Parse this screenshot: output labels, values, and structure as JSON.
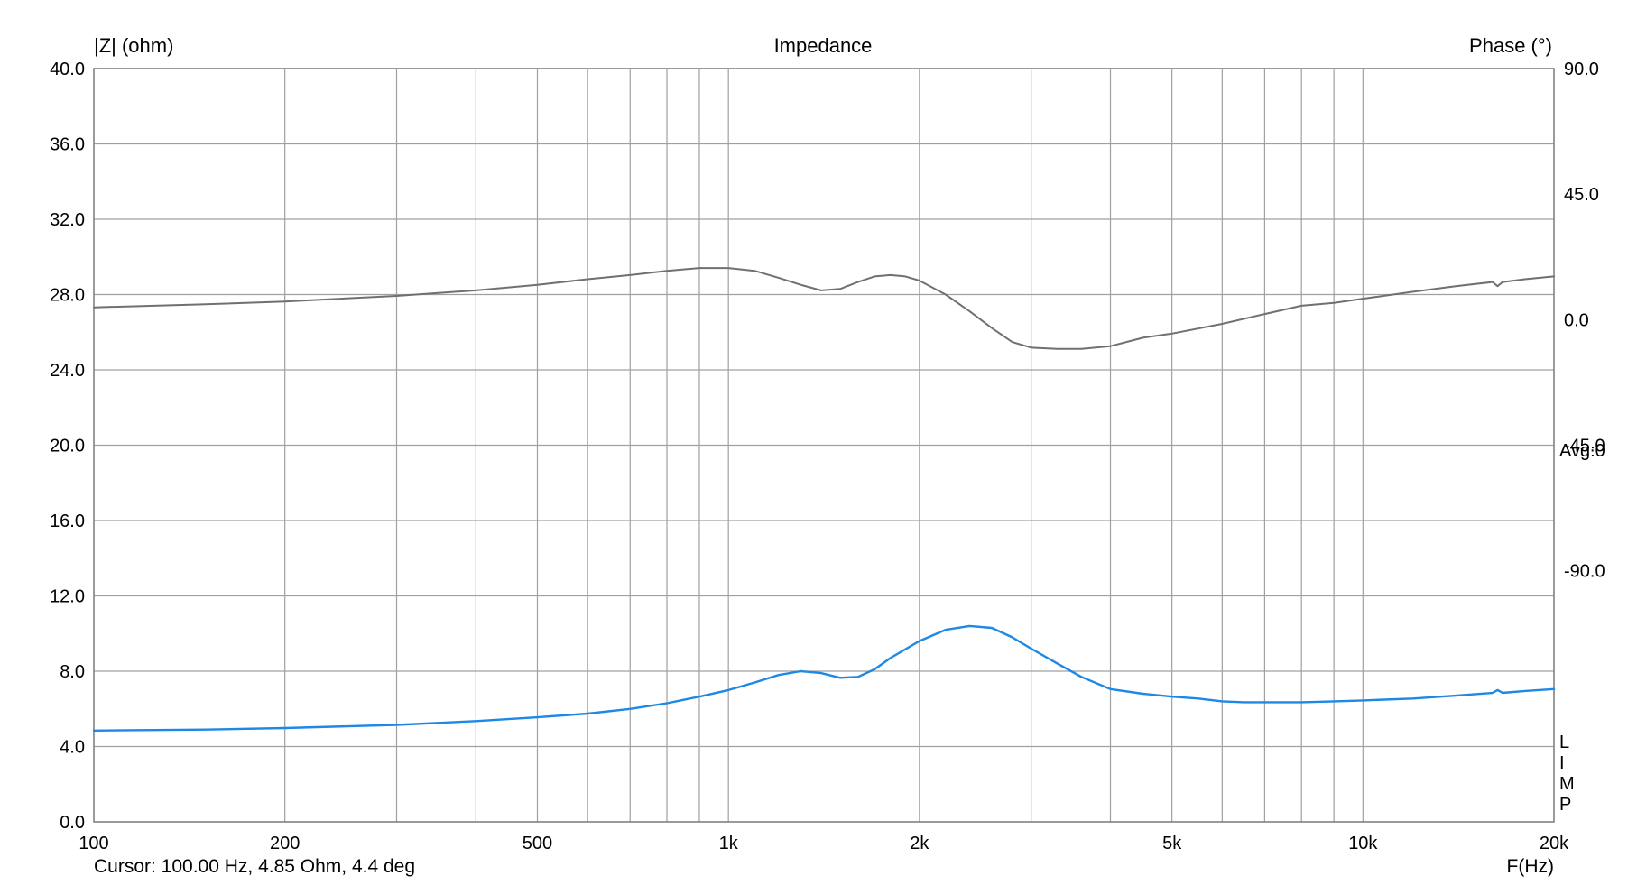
{
  "chart_data": {
    "type": "line",
    "title": "Impedance",
    "ylabel": "|Z| (ohm)",
    "y2label": "Phase (°)",
    "xlabel": "F(Hz)",
    "x_scale": "log",
    "xlim": [
      100,
      20000
    ],
    "ylim": [
      0,
      40
    ],
    "y2lim": [
      -180,
      90
    ],
    "x_ticks": [
      {
        "value": 100,
        "label": "100"
      },
      {
        "value": 200,
        "label": "200"
      },
      {
        "value": 500,
        "label": "500"
      },
      {
        "value": 1000,
        "label": "1k"
      },
      {
        "value": 2000,
        "label": "2k"
      },
      {
        "value": 5000,
        "label": "5k"
      },
      {
        "value": 10000,
        "label": "10k"
      },
      {
        "value": 20000,
        "label": "20k"
      }
    ],
    "y_ticks": [
      "0.0",
      "4.0",
      "8.0",
      "12.0",
      "16.0",
      "20.0",
      "24.0",
      "28.0",
      "32.0",
      "36.0",
      "40.0"
    ],
    "y2_ticks": [
      "-90.0",
      "-45.0",
      "0.0",
      "45.0",
      "90.0"
    ],
    "grid": true,
    "colors": {
      "impedance": "#1e88e5",
      "phase": "#707070",
      "grid": "#a0a0a0"
    },
    "series": [
      {
        "axis": "left",
        "x": [
          100,
          150,
          200,
          300,
          400,
          500,
          600,
          700,
          800,
          900,
          1000,
          1100,
          1200,
          1300,
          1400,
          1500,
          1600,
          1700,
          1800,
          2000,
          2200,
          2400,
          2600,
          2800,
          3000,
          3300,
          3600,
          4000,
          4500,
          5000,
          5500,
          6000,
          6500,
          7000,
          8000,
          9000,
          10000,
          12000,
          14000,
          16000,
          16300,
          16600,
          18000,
          20000
        ],
        "values": [
          4.85,
          4.9,
          4.98,
          5.15,
          5.35,
          5.55,
          5.75,
          6.0,
          6.3,
          6.65,
          7.0,
          7.4,
          7.8,
          8.0,
          7.9,
          7.65,
          7.7,
          8.1,
          8.7,
          9.6,
          10.2,
          10.4,
          10.3,
          9.8,
          9.2,
          8.4,
          7.7,
          7.05,
          6.8,
          6.65,
          6.55,
          6.4,
          6.35,
          6.35,
          6.35,
          6.4,
          6.45,
          6.55,
          6.7,
          6.85,
          7.0,
          6.85,
          6.95,
          7.05
        ]
      },
      {
        "axis": "right",
        "x": [
          100,
          150,
          200,
          300,
          400,
          500,
          600,
          700,
          800,
          900,
          1000,
          1100,
          1200,
          1300,
          1400,
          1500,
          1600,
          1700,
          1800,
          1900,
          2000,
          2200,
          2400,
          2600,
          2800,
          3000,
          3300,
          3600,
          4000,
          4500,
          5000,
          6000,
          7000,
          8000,
          9000,
          10000,
          12000,
          14000,
          16000,
          16300,
          16600,
          18000,
          20000
        ],
        "values": [
          4.4,
          5.5,
          6.5,
          8.5,
          10.5,
          12.5,
          14.5,
          16.0,
          17.5,
          18.5,
          18.5,
          17.5,
          15.0,
          12.5,
          10.5,
          11.0,
          13.5,
          15.5,
          16.0,
          15.5,
          14.0,
          9.0,
          3.0,
          -3.0,
          -8.0,
          -10.0,
          -10.5,
          -10.5,
          -9.5,
          -6.5,
          -5.0,
          -1.5,
          2.0,
          5.0,
          6.0,
          7.5,
          10.0,
          12.0,
          13.5,
          12.0,
          13.5,
          14.5,
          15.5
        ]
      }
    ],
    "right_note": "Avg:0",
    "side_letters": [
      "L",
      "I",
      "M",
      "P"
    ],
    "cursor_text": "Cursor: 100.00 Hz, 4.85 Ohm, 4.4 deg"
  }
}
